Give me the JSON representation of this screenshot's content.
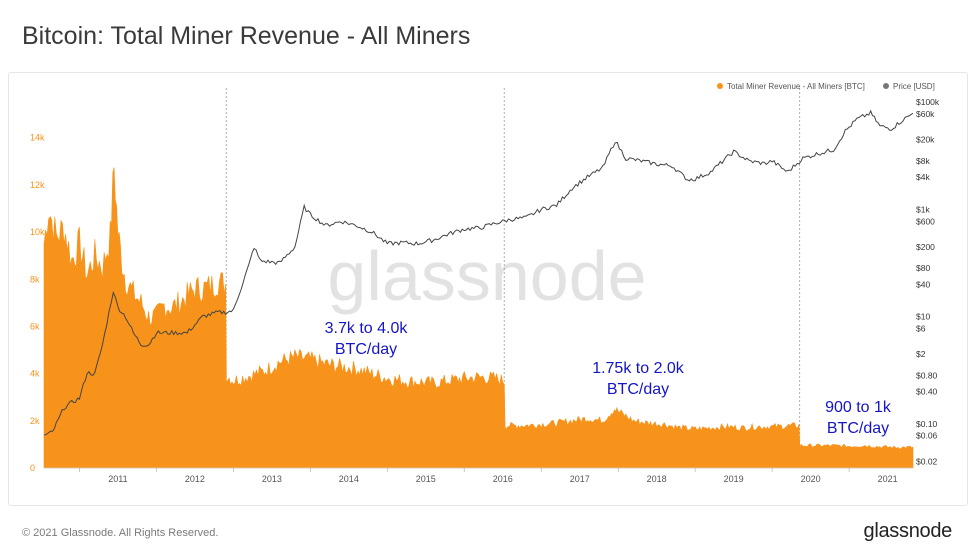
{
  "title": "Bitcoin: Total Miner Revenue - All Miners",
  "footer": {
    "copyright": "© 2021 Glassnode. All Rights Reserved.",
    "brand": "glassnode"
  },
  "watermark": "glassnode",
  "colors": {
    "revenue": "#f7931a",
    "price": "#444444",
    "annotation": "#1414c8",
    "left_axis": "#f7931a",
    "right_axis": "#333333"
  },
  "legend": [
    {
      "label": "Total Miner Revenue - All Miners [BTC]",
      "color": "#f7931a"
    },
    {
      "label": "Price [USD]",
      "color": "#777777"
    }
  ],
  "annotations": [
    {
      "line1": "3.7k to 4.0k",
      "line2": "BTC/day"
    },
    {
      "line1": "1.75k to 2.0k",
      "line2": "BTC/day"
    },
    {
      "line1": "900 to 1k",
      "line2": "BTC/day"
    }
  ],
  "chart_data": {
    "type": "area",
    "x_range": [
      "2010-07-17",
      "2021-10-31"
    ],
    "x_ticks": [
      "2011",
      "2012",
      "2013",
      "2014",
      "2015",
      "2016",
      "2017",
      "2018",
      "2019",
      "2020",
      "2021"
    ],
    "y_left": {
      "ticks": [
        "0",
        "2k",
        "4k",
        "6k",
        "8k",
        "10k",
        "12k",
        "14k"
      ],
      "range": [
        0,
        15600
      ]
    },
    "y_right": {
      "scale": "log",
      "ticks": [
        "$0.02",
        "$0.06",
        "$0.10",
        "$0.40",
        "$0.80",
        "$2",
        "$6",
        "$10",
        "$40",
        "$80",
        "$200",
        "$600",
        "$1k",
        "$4k",
        "$8k",
        "$20k",
        "$60k",
        "$100k"
      ],
      "range": [
        0.015,
        110000
      ]
    },
    "halvings": [
      "2012-11-28",
      "2016-07-09",
      "2020-05-11"
    ],
    "grid": false,
    "legend_position": "top-right",
    "series": [
      {
        "name": "Total Miner Revenue - All Miners [BTC]",
        "axis": "left",
        "points": [
          [
            2010.54,
            9500
          ],
          [
            2010.6,
            11000
          ],
          [
            2010.7,
            9800
          ],
          [
            2010.8,
            10200
          ],
          [
            2010.9,
            8800
          ],
          [
            2011.0,
            9500
          ],
          [
            2011.1,
            8200
          ],
          [
            2011.2,
            9000
          ],
          [
            2011.3,
            8500
          ],
          [
            2011.4,
            9800
          ],
          [
            2011.45,
            12800
          ],
          [
            2011.5,
            10000
          ],
          [
            2011.55,
            8800
          ],
          [
            2011.6,
            8000
          ],
          [
            2011.7,
            7400
          ],
          [
            2011.8,
            7000
          ],
          [
            2011.9,
            6400
          ],
          [
            2012.0,
            6400
          ],
          [
            2012.1,
            6900
          ],
          [
            2012.2,
            6800
          ],
          [
            2012.3,
            7000
          ],
          [
            2012.4,
            7300
          ],
          [
            2012.5,
            7600
          ],
          [
            2012.6,
            7600
          ],
          [
            2012.7,
            7700
          ],
          [
            2012.8,
            7900
          ],
          [
            2012.9,
            7800
          ],
          [
            2012.91,
            3900
          ],
          [
            2013.0,
            3700
          ],
          [
            2013.2,
            3900
          ],
          [
            2013.4,
            4100
          ],
          [
            2013.6,
            4500
          ],
          [
            2013.8,
            4700
          ],
          [
            2014.0,
            4600
          ],
          [
            2014.2,
            4400
          ],
          [
            2014.4,
            4300
          ],
          [
            2014.6,
            4200
          ],
          [
            2014.8,
            4000
          ],
          [
            2015.0,
            3800
          ],
          [
            2015.2,
            3700
          ],
          [
            2015.4,
            3650
          ],
          [
            2015.6,
            3600
          ],
          [
            2015.8,
            3700
          ],
          [
            2016.0,
            3800
          ],
          [
            2016.2,
            3850
          ],
          [
            2016.4,
            3800
          ],
          [
            2016.52,
            3700
          ],
          [
            2016.53,
            1800
          ],
          [
            2016.8,
            1800
          ],
          [
            2017.0,
            1850
          ],
          [
            2017.2,
            1900
          ],
          [
            2017.4,
            2000
          ],
          [
            2017.6,
            2100
          ],
          [
            2017.8,
            2000
          ],
          [
            2017.95,
            2500
          ],
          [
            2018.0,
            2400
          ],
          [
            2018.2,
            2000
          ],
          [
            2018.4,
            1900
          ],
          [
            2018.6,
            1850
          ],
          [
            2018.8,
            1700
          ],
          [
            2019.0,
            1650
          ],
          [
            2019.2,
            1700
          ],
          [
            2019.4,
            1750
          ],
          [
            2019.6,
            1700
          ],
          [
            2019.8,
            1750
          ],
          [
            2020.0,
            1750
          ],
          [
            2020.35,
            1800
          ],
          [
            2020.36,
            950
          ],
          [
            2020.6,
            950
          ],
          [
            2020.8,
            950
          ],
          [
            2021.0,
            920
          ],
          [
            2021.2,
            950
          ],
          [
            2021.4,
            900
          ],
          [
            2021.6,
            870
          ],
          [
            2021.83,
            880
          ]
        ]
      },
      {
        "name": "Price [USD]",
        "axis": "right",
        "points": [
          [
            2010.54,
            0.06
          ],
          [
            2010.65,
            0.07
          ],
          [
            2010.8,
            0.2
          ],
          [
            2010.9,
            0.25
          ],
          [
            2011.0,
            0.3
          ],
          [
            2011.1,
            0.9
          ],
          [
            2011.2,
            0.85
          ],
          [
            2011.3,
            3
          ],
          [
            2011.44,
            30
          ],
          [
            2011.5,
            15
          ],
          [
            2011.6,
            10
          ],
          [
            2011.7,
            5
          ],
          [
            2011.8,
            3
          ],
          [
            2011.9,
            3
          ],
          [
            2012.0,
            5
          ],
          [
            2012.2,
            5
          ],
          [
            2012.4,
            5
          ],
          [
            2012.6,
            10
          ],
          [
            2012.8,
            12
          ],
          [
            2012.9,
            12
          ],
          [
            2013.0,
            13
          ],
          [
            2013.2,
            90
          ],
          [
            2013.27,
            200
          ],
          [
            2013.35,
            110
          ],
          [
            2013.6,
            100
          ],
          [
            2013.8,
            200
          ],
          [
            2013.92,
            1100
          ],
          [
            2014.0,
            800
          ],
          [
            2014.2,
            500
          ],
          [
            2014.4,
            600
          ],
          [
            2014.6,
            500
          ],
          [
            2014.8,
            380
          ],
          [
            2015.0,
            230
          ],
          [
            2015.2,
            240
          ],
          [
            2015.4,
            230
          ],
          [
            2015.6,
            270
          ],
          [
            2015.8,
            350
          ],
          [
            2016.0,
            430
          ],
          [
            2016.2,
            450
          ],
          [
            2016.4,
            550
          ],
          [
            2016.6,
            650
          ],
          [
            2016.8,
            700
          ],
          [
            2017.0,
            1000
          ],
          [
            2017.2,
            1200
          ],
          [
            2017.4,
            2500
          ],
          [
            2017.6,
            4000
          ],
          [
            2017.8,
            6000
          ],
          [
            2017.96,
            19000
          ],
          [
            2018.1,
            9000
          ],
          [
            2018.3,
            8000
          ],
          [
            2018.5,
            7000
          ],
          [
            2018.7,
            6500
          ],
          [
            2018.9,
            3600
          ],
          [
            2019.0,
            3700
          ],
          [
            2019.2,
            5000
          ],
          [
            2019.5,
            12000
          ],
          [
            2019.7,
            8000
          ],
          [
            2019.9,
            7200
          ],
          [
            2020.0,
            8000
          ],
          [
            2020.2,
            5000
          ],
          [
            2020.4,
            9000
          ],
          [
            2020.6,
            11000
          ],
          [
            2020.8,
            13000
          ],
          [
            2020.95,
            29000
          ],
          [
            2021.1,
            48000
          ],
          [
            2021.28,
            63000
          ],
          [
            2021.4,
            36000
          ],
          [
            2021.55,
            32000
          ],
          [
            2021.7,
            47000
          ],
          [
            2021.83,
            62000
          ]
        ]
      }
    ]
  }
}
